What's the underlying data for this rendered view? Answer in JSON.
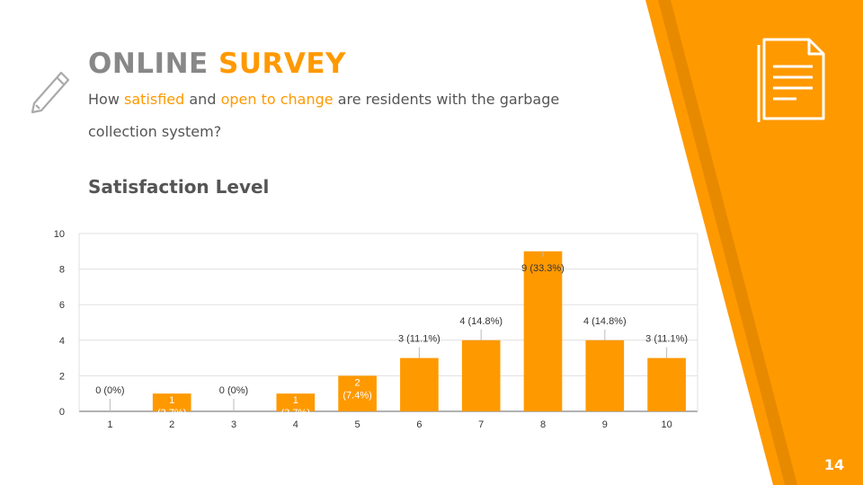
{
  "slide": {
    "title_part1": "ONLINE ",
    "title_part2": "SURVEY",
    "subtitle": {
      "t1": "How ",
      "h1": "satisfied",
      "t2": " and ",
      "h2": "open to change",
      "t3": " are residents with the garbage collection system?"
    },
    "section_heading": "Satisfaction Level",
    "page_number": "14",
    "icons": [
      "pencil-icon",
      "document-icon"
    ]
  },
  "colors": {
    "accent": "#ff9900",
    "accent_dark": "#e88a00",
    "title_gray": "#888888",
    "text_gray": "#555555"
  },
  "chart_data": {
    "type": "bar",
    "categories": [
      "1",
      "2",
      "3",
      "4",
      "5",
      "6",
      "7",
      "8",
      "9",
      "10"
    ],
    "values": [
      0,
      1,
      0,
      1,
      2,
      3,
      4,
      9,
      4,
      3
    ],
    "data_labels": [
      "0 (0%)",
      "1 (3.7%)",
      "0 (0%)",
      "1 (3.7%)",
      "2 (7.4%)",
      "3 (11.1%)",
      "4 (14.8%)",
      "9 (33.3%)",
      "4 (14.8%)",
      "3 (11.1%)"
    ],
    "yticks": [
      "0",
      "2",
      "4",
      "6",
      "8",
      "10"
    ],
    "ylim": [
      0,
      10
    ],
    "grid": true,
    "bar_color": "#ff9900"
  }
}
